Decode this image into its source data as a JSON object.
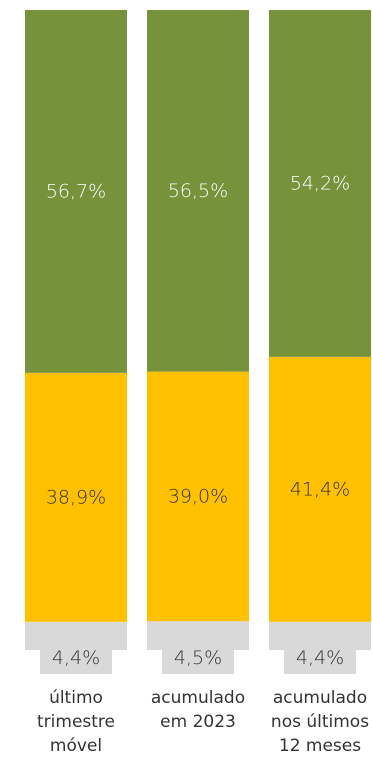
{
  "chart_data": {
    "type": "bar",
    "stacked": true,
    "orientation": "vertical",
    "normalized_to": 100,
    "categories": [
      [
        "último",
        "trimestre",
        "móvel"
      ],
      [
        "acumulado",
        "em 2023"
      ],
      [
        "acumulado",
        "nos últimos",
        "12 meses"
      ]
    ],
    "series": [
      {
        "color": "#ffc000",
        "values": [
          38.9,
          39.0,
          41.4
        ],
        "labels": [
          "38,9%",
          "39,0%",
          "41,4%"
        ]
      },
      {
        "color": "#d9d9d9",
        "values": [
          4.4,
          4.5,
          4.4
        ],
        "labels": [
          "4,4%",
          "4,5%",
          "4,4%"
        ]
      },
      {
        "color": "#76933c",
        "values": [
          56.7,
          56.5,
          54.2
        ],
        "labels": [
          "56,7%",
          "56,5%",
          "54,2%"
        ]
      }
    ],
    "legend": "none",
    "grid": false
  }
}
